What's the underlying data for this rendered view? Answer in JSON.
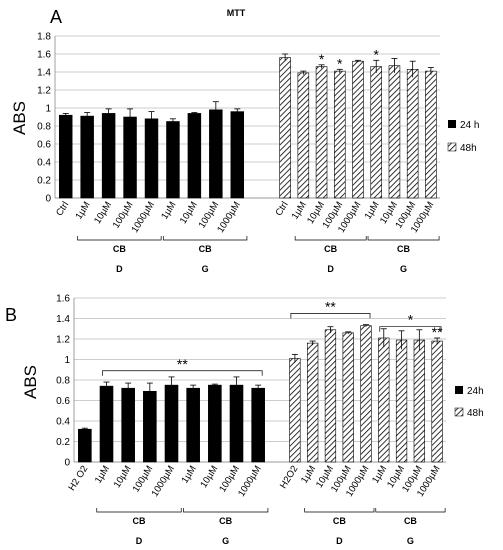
{
  "chart_data": [
    {
      "panel_label": "A",
      "type": "bar",
      "title": "MTT",
      "ylabel": "ABS",
      "xlabel": "",
      "ylim": [
        0,
        1.8
      ],
      "yticks": [
        "0",
        "0.2",
        "0.4",
        "0.6",
        "0.8",
        "1",
        "1.2",
        "1.4",
        "1.6",
        "1.8"
      ],
      "grid": true,
      "legend_position": "right",
      "categories": [
        "Ctrl",
        "1µM",
        "10µM",
        "100µM",
        "1000µM",
        "1µM",
        "10µM",
        "100µM",
        "1000µM"
      ],
      "group_labels": [
        {
          "cb": "CB",
          "letter": "D"
        },
        {
          "cb": "CB",
          "letter": "G"
        }
      ],
      "series": [
        {
          "name": "24 h",
          "pattern": "solid",
          "values": [
            0.92,
            0.91,
            0.94,
            0.9,
            0.88,
            0.85,
            0.94,
            0.98,
            0.96
          ],
          "errors": [
            0.02,
            0.04,
            0.05,
            0.09,
            0.08,
            0.03,
            0.01,
            0.09,
            0.03
          ],
          "stars": [
            "",
            "",
            "",
            "",
            "",
            "",
            "",
            "",
            ""
          ]
        },
        {
          "name": "48h",
          "pattern": "hatched",
          "values": [
            1.56,
            1.39,
            1.46,
            1.41,
            1.52,
            1.46,
            1.47,
            1.43,
            1.41
          ],
          "errors": [
            0.04,
            0.02,
            0.02,
            0.02,
            0.01,
            0.07,
            0.08,
            0.09,
            0.04
          ],
          "stars": [
            "",
            "",
            "*",
            "*",
            "",
            "*",
            "",
            "",
            ""
          ]
        }
      ],
      "brackets": []
    },
    {
      "panel_label": "B",
      "type": "bar",
      "title": "",
      "ylabel": "ABS",
      "xlabel": "",
      "ylim": [
        0,
        1.6
      ],
      "yticks": [
        "0",
        "0.2",
        "0.4",
        "0.6",
        "0.8",
        "1",
        "1.2",
        "1.4",
        "1.6"
      ],
      "grid": true,
      "legend_position": "right",
      "categories": [
        "H2 O2",
        "1µM",
        "10µM",
        "100µM",
        "1000µM",
        "1µM",
        "10µM",
        "100µM",
        "1000µM"
      ],
      "categories_48": [
        "H2O2",
        "1µM",
        "10µM",
        "100µM",
        "1000µM",
        "1µM",
        "10µM",
        "100µM",
        "1000µM"
      ],
      "group_labels": [
        {
          "cb": "CB",
          "letter": "D"
        },
        {
          "cb": "CB",
          "letter": "G"
        }
      ],
      "series": [
        {
          "name": "24h",
          "pattern": "solid",
          "values": [
            0.32,
            0.74,
            0.72,
            0.69,
            0.75,
            0.72,
            0.75,
            0.75,
            0.72
          ],
          "errors": [
            0.01,
            0.04,
            0.05,
            0.08,
            0.08,
            0.03,
            0.01,
            0.08,
            0.03
          ],
          "stars": [
            "",
            "",
            "",
            "",
            "",
            "",
            "",
            "",
            ""
          ]
        },
        {
          "name": "48h",
          "pattern": "hatched",
          "values": [
            1.01,
            1.16,
            1.29,
            1.26,
            1.33,
            1.21,
            1.19,
            1.19,
            1.18
          ],
          "errors": [
            0.04,
            0.02,
            0.03,
            0.01,
            0.01,
            0.09,
            0.09,
            0.1,
            0.03
          ],
          "stars": [
            "",
            "",
            "",
            "",
            "",
            "",
            "",
            "",
            "**"
          ]
        }
      ],
      "brackets": [
        {
          "series": "24h",
          "from": 1,
          "to": 8,
          "level": 0.89,
          "label": "**"
        },
        {
          "series": "48h",
          "from": 0,
          "to": 4,
          "level": 1.45,
          "label": "**"
        },
        {
          "series": "48h",
          "from": 5,
          "to": 8,
          "level": 1.32,
          "label": "*"
        }
      ]
    }
  ]
}
